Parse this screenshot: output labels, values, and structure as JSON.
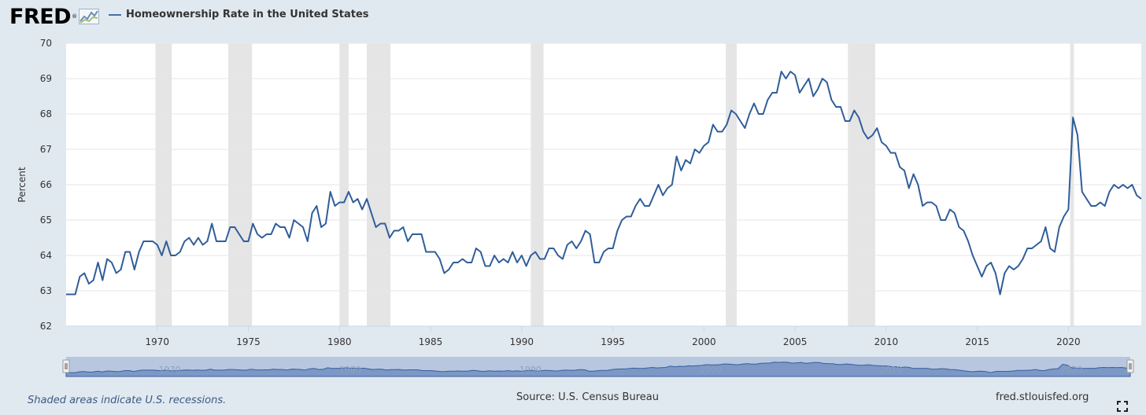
{
  "header": {
    "logo_text": "FRED",
    "logo_mark": "®",
    "logo_icon": "line-chart-icon"
  },
  "chart_data": {
    "type": "line",
    "title": "Homeownership Rate in the United States",
    "ylabel": "Percent",
    "xlabel": "",
    "xlim": [
      1965.0,
      2024.0
    ],
    "ylim": [
      62,
      70
    ],
    "yticks": [
      62,
      63,
      64,
      65,
      66,
      67,
      68,
      69,
      70
    ],
    "xticks": [
      1970,
      1975,
      1980,
      1985,
      1990,
      1995,
      2000,
      2005,
      2010,
      2015,
      2020
    ],
    "grid": true,
    "legend_position": "top-left",
    "line_color": "#2f5d9a",
    "recession_color": "#e5e5e5",
    "recessions": [
      [
        1969.9,
        1970.8
      ],
      [
        1973.9,
        1975.2
      ],
      [
        1980.0,
        1980.5
      ],
      [
        1981.5,
        1982.8
      ],
      [
        1990.5,
        1991.2
      ],
      [
        2001.2,
        2001.8
      ],
      [
        2007.9,
        2009.4
      ],
      [
        2020.1,
        2020.3
      ]
    ],
    "series": [
      {
        "name": "Homeownership Rate in the United States",
        "x": [
          1965.0,
          1965.25,
          1965.5,
          1965.75,
          1966.0,
          1966.25,
          1966.5,
          1966.75,
          1967.0,
          1967.25,
          1967.5,
          1967.75,
          1968.0,
          1968.25,
          1968.5,
          1968.75,
          1969.0,
          1969.25,
          1969.5,
          1969.75,
          1970.0,
          1970.25,
          1970.5,
          1970.75,
          1971.0,
          1971.25,
          1971.5,
          1971.75,
          1972.0,
          1972.25,
          1972.5,
          1972.75,
          1973.0,
          1973.25,
          1973.5,
          1973.75,
          1974.0,
          1974.25,
          1974.5,
          1974.75,
          1975.0,
          1975.25,
          1975.5,
          1975.75,
          1976.0,
          1976.25,
          1976.5,
          1976.75,
          1977.0,
          1977.25,
          1977.5,
          1977.75,
          1978.0,
          1978.25,
          1978.5,
          1978.75,
          1979.0,
          1979.25,
          1979.5,
          1979.75,
          1980.0,
          1980.25,
          1980.5,
          1980.75,
          1981.0,
          1981.25,
          1981.5,
          1981.75,
          1982.0,
          1982.25,
          1982.5,
          1982.75,
          1983.0,
          1983.25,
          1983.5,
          1983.75,
          1984.0,
          1984.25,
          1984.5,
          1984.75,
          1985.0,
          1985.25,
          1985.5,
          1985.75,
          1986.0,
          1986.25,
          1986.5,
          1986.75,
          1987.0,
          1987.25,
          1987.5,
          1987.75,
          1988.0,
          1988.25,
          1988.5,
          1988.75,
          1989.0,
          1989.25,
          1989.5,
          1989.75,
          1990.0,
          1990.25,
          1990.5,
          1990.75,
          1991.0,
          1991.25,
          1991.5,
          1991.75,
          1992.0,
          1992.25,
          1992.5,
          1992.75,
          1993.0,
          1993.25,
          1993.5,
          1993.75,
          1994.0,
          1994.25,
          1994.5,
          1994.75,
          1995.0,
          1995.25,
          1995.5,
          1995.75,
          1996.0,
          1996.25,
          1996.5,
          1996.75,
          1997.0,
          1997.25,
          1997.5,
          1997.75,
          1998.0,
          1998.25,
          1998.5,
          1998.75,
          1999.0,
          1999.25,
          1999.5,
          1999.75,
          2000.0,
          2000.25,
          2000.5,
          2000.75,
          2001.0,
          2001.25,
          2001.5,
          2001.75,
          2002.0,
          2002.25,
          2002.5,
          2002.75,
          2003.0,
          2003.25,
          2003.5,
          2003.75,
          2004.0,
          2004.25,
          2004.5,
          2004.75,
          2005.0,
          2005.25,
          2005.5,
          2005.75,
          2006.0,
          2006.25,
          2006.5,
          2006.75,
          2007.0,
          2007.25,
          2007.5,
          2007.75,
          2008.0,
          2008.25,
          2008.5,
          2008.75,
          2009.0,
          2009.25,
          2009.5,
          2009.75,
          2010.0,
          2010.25,
          2010.5,
          2010.75,
          2011.0,
          2011.25,
          2011.5,
          2011.75,
          2012.0,
          2012.25,
          2012.5,
          2012.75,
          2013.0,
          2013.25,
          2013.5,
          2013.75,
          2014.0,
          2014.25,
          2014.5,
          2014.75,
          2015.0,
          2015.25,
          2015.5,
          2015.75,
          2016.0,
          2016.25,
          2016.5,
          2016.75,
          2017.0,
          2017.25,
          2017.5,
          2017.75,
          2018.0,
          2018.25,
          2018.5,
          2018.75,
          2019.0,
          2019.25,
          2019.5,
          2019.75,
          2020.0,
          2020.25,
          2020.5,
          2020.75,
          2021.0,
          2021.25,
          2021.5,
          2021.75,
          2022.0,
          2022.25,
          2022.5,
          2022.75,
          2023.0,
          2023.25,
          2023.5,
          2023.75,
          2024.0
        ],
        "values": [
          62.9,
          62.9,
          62.9,
          63.4,
          63.5,
          63.2,
          63.3,
          63.8,
          63.3,
          63.9,
          63.8,
          63.5,
          63.6,
          64.1,
          64.1,
          63.6,
          64.1,
          64.4,
          64.4,
          64.4,
          64.3,
          64.0,
          64.4,
          64.0,
          64.0,
          64.1,
          64.4,
          64.5,
          64.3,
          64.5,
          64.3,
          64.4,
          64.9,
          64.4,
          64.4,
          64.4,
          64.8,
          64.8,
          64.6,
          64.4,
          64.4,
          64.9,
          64.6,
          64.5,
          64.6,
          64.6,
          64.9,
          64.8,
          64.8,
          64.5,
          65.0,
          64.9,
          64.8,
          64.4,
          65.2,
          65.4,
          64.8,
          64.9,
          65.8,
          65.4,
          65.5,
          65.5,
          65.8,
          65.5,
          65.6,
          65.3,
          65.6,
          65.2,
          64.8,
          64.9,
          64.9,
          64.5,
          64.7,
          64.7,
          64.8,
          64.4,
          64.6,
          64.6,
          64.6,
          64.1,
          64.1,
          64.1,
          63.9,
          63.5,
          63.6,
          63.8,
          63.8,
          63.9,
          63.8,
          63.8,
          64.2,
          64.1,
          63.7,
          63.7,
          64.0,
          63.8,
          63.9,
          63.8,
          64.1,
          63.8,
          64.0,
          63.7,
          64.0,
          64.1,
          63.9,
          63.9,
          64.2,
          64.2,
          64.0,
          63.9,
          64.3,
          64.4,
          64.2,
          64.4,
          64.7,
          64.6,
          63.8,
          63.8,
          64.1,
          64.2,
          64.2,
          64.7,
          65.0,
          65.1,
          65.1,
          65.4,
          65.6,
          65.4,
          65.4,
          65.7,
          66.0,
          65.7,
          65.9,
          66.0,
          66.8,
          66.4,
          66.7,
          66.6,
          67.0,
          66.9,
          67.1,
          67.2,
          67.7,
          67.5,
          67.5,
          67.7,
          68.1,
          68.0,
          67.8,
          67.6,
          68.0,
          68.3,
          68.0,
          68.0,
          68.4,
          68.6,
          68.6,
          69.2,
          69.0,
          69.2,
          69.1,
          68.6,
          68.8,
          69.0,
          68.5,
          68.7,
          69.0,
          68.9,
          68.4,
          68.2,
          68.2,
          67.8,
          67.8,
          68.1,
          67.9,
          67.5,
          67.3,
          67.4,
          67.6,
          67.2,
          67.1,
          66.9,
          66.9,
          66.5,
          66.4,
          65.9,
          66.3,
          66.0,
          65.4,
          65.5,
          65.5,
          65.4,
          65.0,
          65.0,
          65.3,
          65.2,
          64.8,
          64.7,
          64.4,
          64.0,
          63.7,
          63.4,
          63.7,
          63.8,
          63.5,
          62.9,
          63.5,
          63.7,
          63.6,
          63.7,
          63.9,
          64.2,
          64.2,
          64.3,
          64.4,
          64.8,
          64.2,
          64.1,
          64.8,
          65.1,
          65.3,
          67.9,
          67.4,
          65.8,
          65.6,
          65.4,
          65.4,
          65.5,
          65.4,
          65.8,
          66.0,
          65.9,
          66.0,
          65.9,
          66.0,
          65.7,
          65.6
        ]
      }
    ],
    "navigator_labels": [
      "1970",
      "1980",
      "1990",
      "2000",
      "2010",
      "2020"
    ]
  },
  "footer": {
    "recession_note": "Shaded areas indicate U.S. recessions.",
    "source": "Source: U.S. Census Bureau",
    "site": "fred.stlouisfed.org",
    "fullscreen_icon": "fullscreen-icon"
  }
}
